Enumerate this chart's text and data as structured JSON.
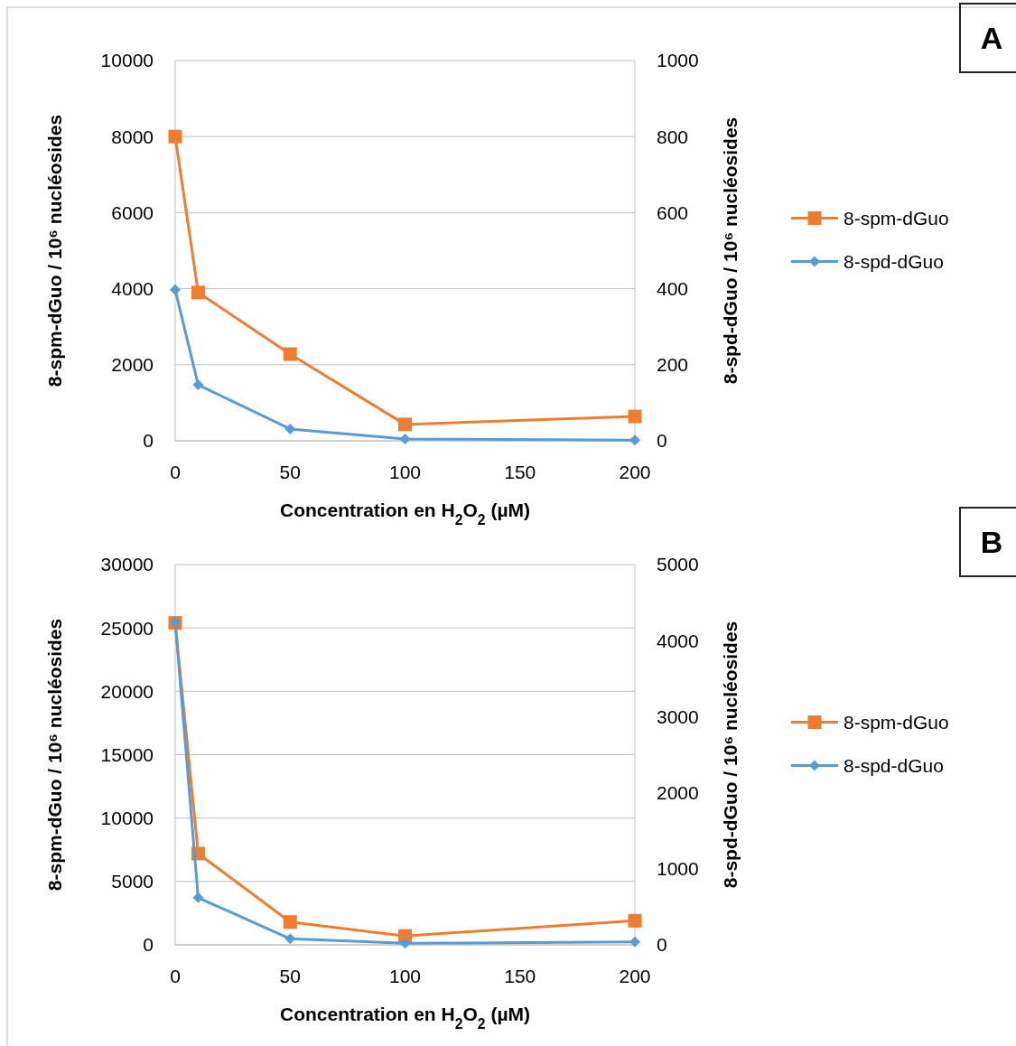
{
  "chart_data": [
    {
      "type": "line",
      "x": [
        0,
        10,
        50,
        100,
        200
      ],
      "xlim": [
        0,
        200
      ],
      "xticks": [
        0,
        50,
        100,
        150,
        200
      ],
      "ylim": [
        0,
        10000
      ],
      "yticks": [
        0,
        2000,
        4000,
        6000,
        8000,
        10000
      ],
      "y2lim": [
        0,
        1000
      ],
      "y2ticks": [
        0,
        200,
        400,
        600,
        800,
        1000
      ],
      "xlabel": "Concentration en H$_{2}$O$_{2}$ (µM)",
      "ylabel": "8-spm-dGuo / 10⁶ nucléosides",
      "y2label": "8-spd-dGuo / 10⁶ nucléosides",
      "grid": "y",
      "legend": "right",
      "line_style": "solid",
      "annotations": [
        "A"
      ],
      "series": [
        {
          "name": "8-spm-dGuo",
          "color": "#ed7d31",
          "marker": "square",
          "values": [
            8000,
            3900,
            2280,
            430,
            640
          ]
        },
        {
          "name": "8-spd-dGuo",
          "color": "#5b9bd5",
          "marker": "diamond",
          "axis": "y2",
          "values": [
            397,
            147,
            31,
            5,
            2
          ]
        }
      ]
    },
    {
      "type": "line",
      "x": [
        0,
        10,
        50,
        100,
        200
      ],
      "xlim": [
        0,
        200
      ],
      "xticks": [
        0,
        50,
        100,
        150,
        200
      ],
      "ylim": [
        0,
        30000
      ],
      "yticks": [
        0,
        5000,
        10000,
        15000,
        20000,
        25000,
        30000
      ],
      "y2lim": [
        0,
        5000
      ],
      "y2ticks": [
        0,
        1000,
        2000,
        3000,
        4000,
        5000
      ],
      "xlabel": "Concentration en H$_{2}$O$_{2}$ (µM)",
      "ylabel": "8-spm-dGuo / 10⁶ nucléosides",
      "y2label": "8-spd-dGuo / 10⁶ nucléosides",
      "grid": "y",
      "legend": "right",
      "line_style": "solid",
      "annotations": [
        "B"
      ],
      "series": [
        {
          "name": "8-spm-dGuo",
          "color": "#ed7d31",
          "marker": "square",
          "values": [
            25400,
            7200,
            1800,
            700,
            1900
          ]
        },
        {
          "name": "8-spd-dGuo",
          "color": "#5b9bd5",
          "marker": "diamond",
          "axis": "y2",
          "values": [
            4250,
            620,
            80,
            20,
            40
          ]
        }
      ]
    }
  ]
}
